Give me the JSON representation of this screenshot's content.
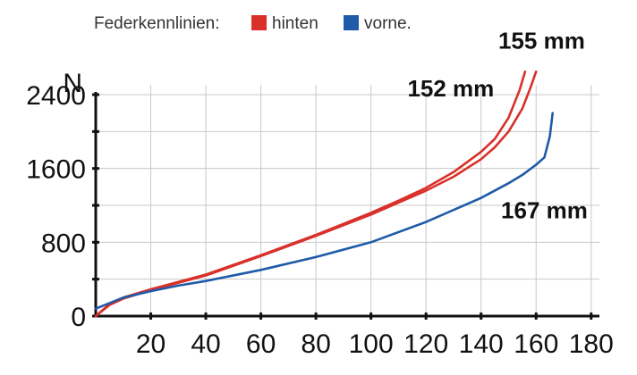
{
  "legend": {
    "title": "Federkennlinien:",
    "items": [
      {
        "label": "hinten",
        "color": "#d9302a"
      },
      {
        "label": "vorne.",
        "color": "#1f5ba8"
      }
    ]
  },
  "chart_data": {
    "type": "line",
    "ylabel": "N",
    "xlabel": "",
    "xlim": [
      0,
      183
    ],
    "ylim": [
      0,
      2700
    ],
    "x_ticks": [
      20,
      40,
      60,
      80,
      100,
      120,
      140,
      160,
      180
    ],
    "y_ticks": [
      0,
      800,
      1600,
      2400
    ],
    "grid": true,
    "series": [
      {
        "color": "#d9302a",
        "x": [
          0,
          5,
          10,
          20,
          30,
          40,
          60,
          80,
          100,
          110,
          120,
          130,
          140,
          145,
          150,
          154,
          156
        ],
        "y": [
          0,
          130,
          200,
          290,
          370,
          450,
          660,
          880,
          1120,
          1250,
          1390,
          1560,
          1780,
          1920,
          2150,
          2450,
          2650
        ]
      },
      {
        "color": "#d9302a",
        "x": [
          0,
          5,
          10,
          20,
          30,
          40,
          60,
          80,
          100,
          110,
          120,
          130,
          140,
          145,
          150,
          155,
          158,
          160
        ],
        "y": [
          0,
          120,
          190,
          280,
          360,
          440,
          650,
          870,
          1100,
          1230,
          1360,
          1510,
          1700,
          1830,
          2000,
          2250,
          2480,
          2650
        ]
      },
      {
        "color": "#1f5ba8",
        "x": [
          0,
          10,
          20,
          30,
          40,
          60,
          80,
          100,
          120,
          140,
          150,
          155,
          160,
          163,
          165,
          166
        ],
        "y": [
          80,
          200,
          270,
          330,
          380,
          500,
          640,
          800,
          1020,
          1280,
          1440,
          1530,
          1640,
          1720,
          1950,
          2200
        ]
      }
    ],
    "annotations": [
      {
        "text": "155 mm",
        "x": 162,
        "y": 2900
      },
      {
        "text": "152 mm",
        "x": 129,
        "y": 2380
      },
      {
        "text": "167 mm",
        "x": 163,
        "y": 1060
      }
    ]
  }
}
